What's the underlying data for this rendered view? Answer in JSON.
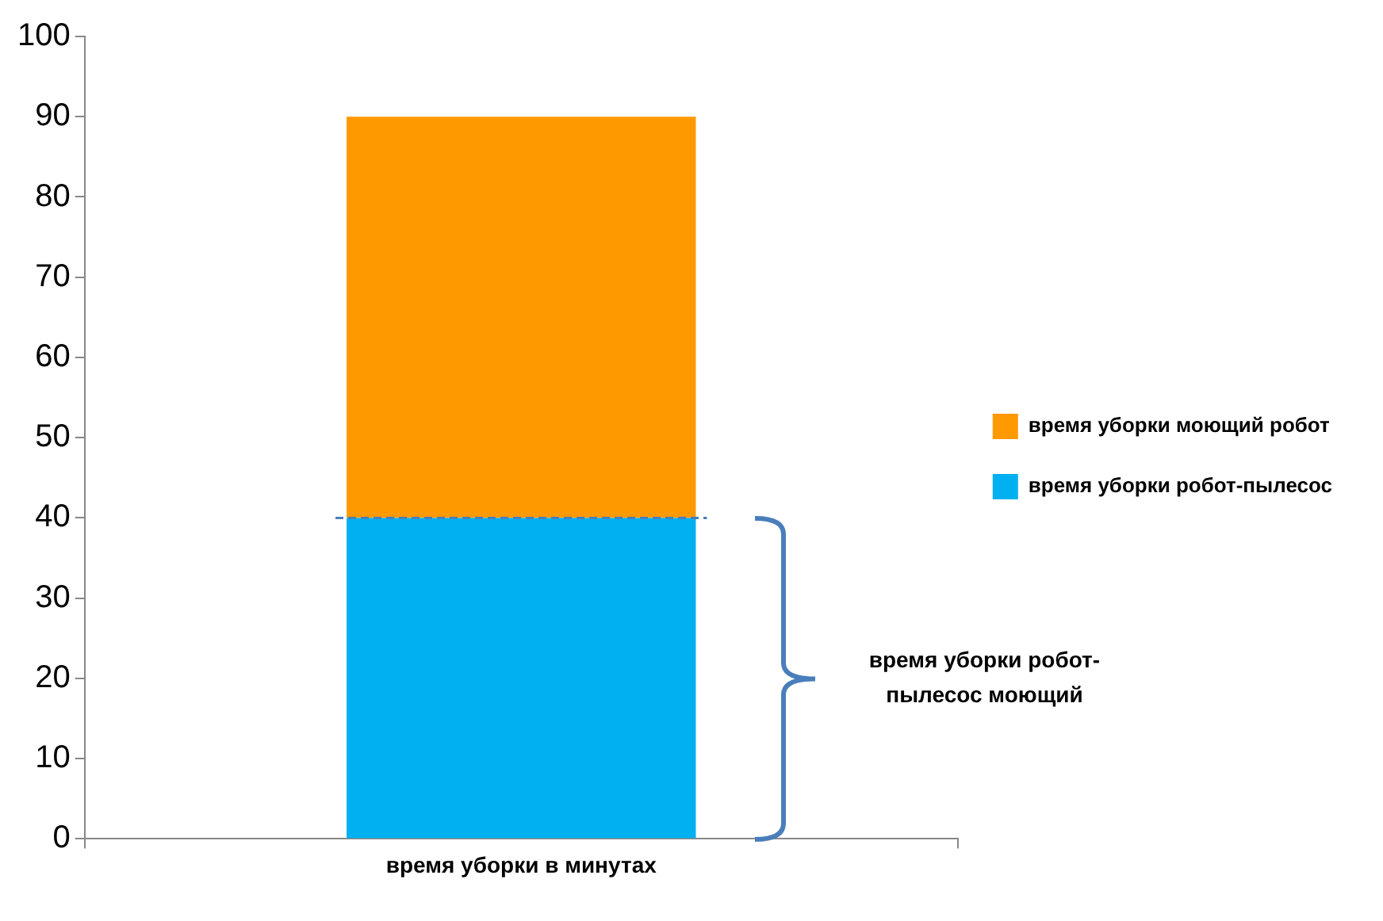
{
  "chart_data": {
    "type": "bar",
    "stacked": true,
    "categories": [
      "время уборки в минутах"
    ],
    "series": [
      {
        "name": "время уборки робот-пылесос",
        "color": "#00b0f0",
        "values": [
          40
        ]
      },
      {
        "name": "время уборки моющий робот",
        "color": "#ff9900",
        "values": [
          50
        ]
      }
    ],
    "ylim": [
      0,
      100
    ],
    "yticks": [
      0,
      10,
      20,
      30,
      40,
      50,
      60,
      70,
      80,
      90,
      100
    ],
    "grid": false,
    "legend": "right",
    "ref_lines": [
      {
        "axis": "y",
        "value": 40,
        "color": "#4a7ebb",
        "line_style": "dashed"
      }
    ],
    "annotations": [
      "время уборки робот-\nпылесос моющий"
    ]
  }
}
